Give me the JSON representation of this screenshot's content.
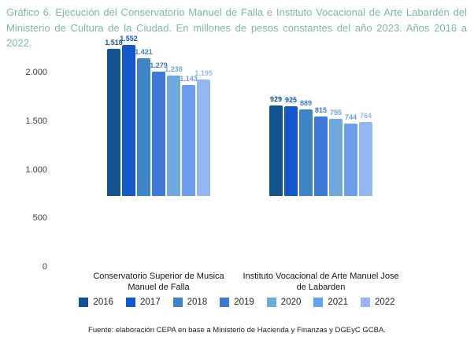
{
  "title": "Gráfico 6. Ejecución del Conservatorio Manuel de Falla e Instituto Vocacional de Arte Labardén del Ministerio de Cultura de la Ciudad. En millones de pesos constantes del año 2023. Años 2016 a 2022.",
  "title_color": "#7cb8ae",
  "source": "Fuente: elaboración CEPA en base a Ministerio de Hacienda y Finanzas y DGEyC GCBA.",
  "category_lines": [
    [
      "Conservatorio Superior de Musica",
      "Manuel de Falla"
    ],
    [
      "Instituto Vocacional de Arte Manuel Jose",
      "de Labarden"
    ]
  ],
  "chart_data": {
    "type": "bar",
    "title": "Gráfico 6. Ejecución del Conservatorio Manuel de Falla e Instituto Vocacional de Arte Labardén del Ministerio de Cultura de la Ciudad. En millones de pesos constantes del año 2023. Años 2016 a 2022.",
    "categories": [
      "Conservatorio Superior de Musica Manuel de Falla",
      "Instituto Vocacional de Arte Manuel Jose de Labarden"
    ],
    "series": [
      {
        "name": "2016",
        "color": "#11528f",
        "values": [
          1518,
          929
        ],
        "labels": [
          "1.518",
          "929"
        ]
      },
      {
        "name": "2017",
        "color": "#1456cc",
        "values": [
          1552,
          925
        ],
        "labels": [
          "1.552",
          "925"
        ]
      },
      {
        "name": "2018",
        "color": "#3d85c6",
        "values": [
          1421,
          889
        ],
        "labels": [
          "1.421",
          "889"
        ]
      },
      {
        "name": "2019",
        "color": "#3c78d8",
        "values": [
          1279,
          815
        ],
        "labels": [
          "1.279",
          "815"
        ]
      },
      {
        "name": "2020",
        "color": "#6fa8dc",
        "values": [
          1238,
          795
        ],
        "labels": [
          "1.238",
          "795"
        ]
      },
      {
        "name": "2021",
        "color": "#6d9eeb",
        "values": [
          1143,
          744
        ],
        "labels": [
          "1.143",
          "744"
        ]
      },
      {
        "name": "2022",
        "color": "#93b8f1",
        "values": [
          1195,
          764
        ],
        "labels": [
          "1.195",
          "764"
        ]
      }
    ],
    "y_ticks": [
      {
        "label": "2.000",
        "value": 2000
      },
      {
        "label": "1.500",
        "value": 1500
      },
      {
        "label": "1.000",
        "value": 1000
      },
      {
        "label": "500",
        "value": 500
      },
      {
        "label": "0",
        "value": 0
      }
    ],
    "ylim": [
      0,
      2000
    ],
    "xlabel": "",
    "ylabel": "",
    "grid": false,
    "data_labels": true,
    "legend_position": "bottom"
  }
}
